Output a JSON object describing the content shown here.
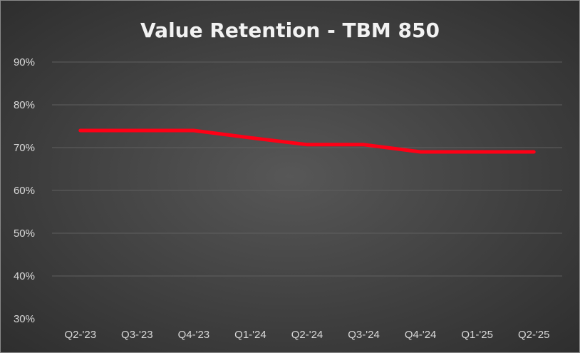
{
  "chart_data": {
    "type": "line",
    "title": "Value Retention - TBM 850",
    "categories": [
      "Q2-'23",
      "Q3-'23",
      "Q4-'23",
      "Q1-'24",
      "Q2-'24",
      "Q3-'24",
      "Q4-'24",
      "Q1-'25",
      "Q2-'25"
    ],
    "series": [
      {
        "values": [
          74,
          74,
          74,
          72.3,
          70.7,
          70.7,
          69,
          69,
          69
        ],
        "color": "#ff0016"
      }
    ],
    "ylim": [
      30,
      90
    ],
    "yticks": [
      30,
      40,
      50,
      60,
      70,
      80,
      90
    ],
    "ytick_labels": [
      "30%",
      "40%",
      "50%",
      "60%",
      "70%",
      "80%",
      "90%"
    ],
    "xlabel": "",
    "ylabel": "",
    "grid": true,
    "legend": "none"
  }
}
